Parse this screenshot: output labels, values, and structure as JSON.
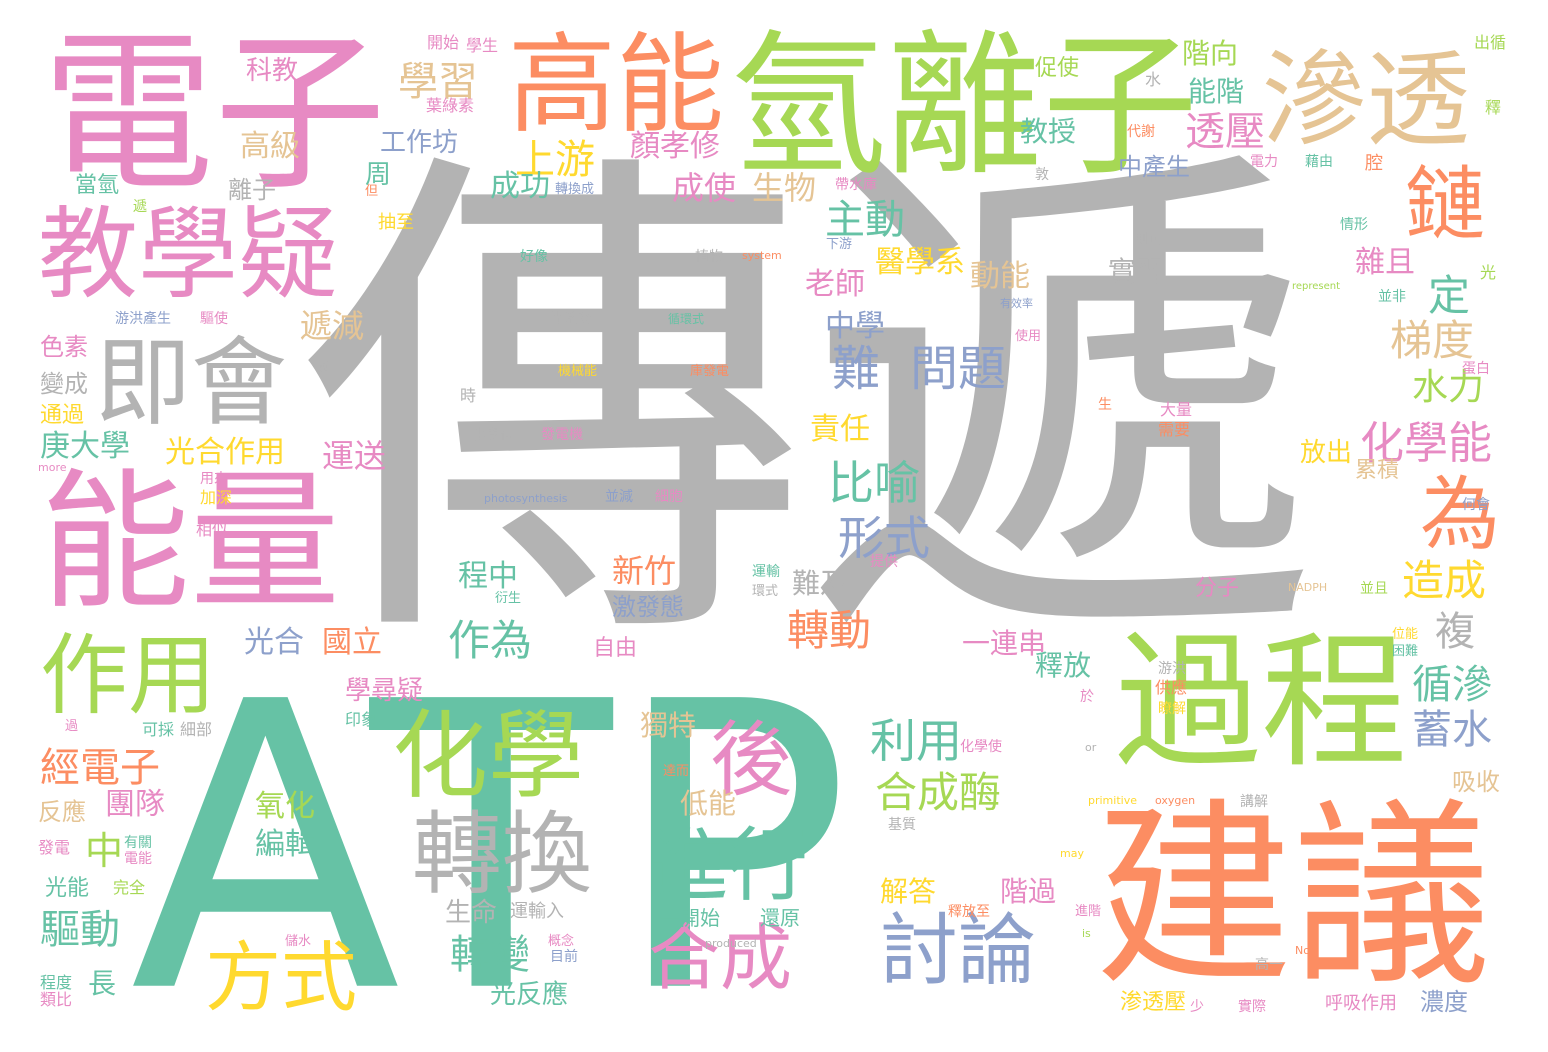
{
  "colors": {
    "green": "#66c2a5",
    "orange": "#fc8d62",
    "blue": "#8da0cb",
    "pink": "#e78ac3",
    "lime": "#a6d854",
    "yellow": "#ffd92f",
    "tan": "#e5c494",
    "gray": "#b3b3b3"
  },
  "words": [
    {
      "text": "ATP",
      "color": "green"
    },
    {
      "text": "傳遞",
      "color": "gray"
    },
    {
      "text": "電子",
      "color": "pink"
    },
    {
      "text": "氫離子",
      "color": "lime"
    },
    {
      "text": "能量",
      "color": "pink"
    },
    {
      "text": "建議",
      "color": "orange"
    },
    {
      "text": "過程",
      "color": "lime"
    },
    {
      "text": "高能",
      "color": "orange"
    },
    {
      "text": "滲透",
      "color": "tan"
    },
    {
      "text": "教學疑",
      "color": "pink"
    },
    {
      "text": "即會",
      "color": "gray"
    },
    {
      "text": "作用",
      "color": "lime"
    },
    {
      "text": "化學",
      "color": "lime"
    },
    {
      "text": "轉換",
      "color": "gray"
    },
    {
      "text": "鏈",
      "color": "orange"
    },
    {
      "text": "為",
      "color": "orange"
    },
    {
      "text": "後",
      "color": "pink"
    },
    {
      "text": "進行",
      "color": "green"
    },
    {
      "text": "討論",
      "color": "blue"
    },
    {
      "text": "方式",
      "color": "yellow"
    },
    {
      "text": "合成",
      "color": "pink"
    },
    {
      "text": "學習",
      "color": "tan"
    },
    {
      "text": "上游",
      "color": "yellow"
    },
    {
      "text": "透壓",
      "color": "pink"
    },
    {
      "text": "問題",
      "color": "blue"
    },
    {
      "text": "難",
      "color": "blue"
    },
    {
      "text": "主動",
      "color": "green"
    },
    {
      "text": "比喻",
      "color": "green"
    },
    {
      "text": "形式",
      "color": "blue"
    },
    {
      "text": "利用",
      "color": "green"
    },
    {
      "text": "合成酶",
      "color": "lime"
    },
    {
      "text": "化學能",
      "color": "pink"
    },
    {
      "text": "梯度",
      "color": "tan"
    },
    {
      "text": "水力",
      "color": "lime"
    },
    {
      "text": "定",
      "color": "green"
    },
    {
      "text": "造成",
      "color": "yellow"
    },
    {
      "text": "複",
      "color": "gray"
    },
    {
      "text": "循滲",
      "color": "green"
    },
    {
      "text": "蓄水",
      "color": "blue"
    },
    {
      "text": "經電子",
      "color": "orange"
    },
    {
      "text": "作為",
      "color": "green"
    },
    {
      "text": "轉動",
      "color": "orange"
    },
    {
      "text": "轉變",
      "color": "green"
    },
    {
      "text": "驅動",
      "color": "green"
    },
    {
      "text": "團隊",
      "color": "pink"
    },
    {
      "text": "中",
      "color": "lime"
    },
    {
      "text": "編輯",
      "color": "green"
    },
    {
      "text": "氧化",
      "color": "lime"
    },
    {
      "text": "光合作用",
      "color": "yellow"
    },
    {
      "text": "庚大學",
      "color": "green"
    },
    {
      "text": "運送",
      "color": "pink"
    },
    {
      "text": "遞減",
      "color": "tan"
    },
    {
      "text": "高級",
      "color": "tan"
    },
    {
      "text": "工作坊",
      "color": "blue"
    },
    {
      "text": "顏孝修",
      "color": "pink"
    },
    {
      "text": "成功",
      "color": "green"
    },
    {
      "text": "成使",
      "color": "pink"
    },
    {
      "text": "生物",
      "color": "tan"
    },
    {
      "text": "醫學系",
      "color": "yellow"
    },
    {
      "text": "動能",
      "color": "tan"
    },
    {
      "text": "老師",
      "color": "pink"
    },
    {
      "text": "中學",
      "color": "blue"
    },
    {
      "text": "責任",
      "color": "yellow"
    },
    {
      "text": "實習",
      "color": "gray"
    },
    {
      "text": "雜且",
      "color": "pink"
    },
    {
      "text": "教授",
      "color": "green"
    },
    {
      "text": "能階",
      "color": "green"
    },
    {
      "text": "階向",
      "color": "lime"
    },
    {
      "text": "中產生",
      "color": "blue"
    },
    {
      "text": "科教",
      "color": "pink"
    },
    {
      "text": "新竹",
      "color": "orange"
    },
    {
      "text": "激發態",
      "color": "blue"
    },
    {
      "text": "程中",
      "color": "green"
    },
    {
      "text": "難及",
      "color": "gray"
    },
    {
      "text": "國立",
      "color": "orange"
    },
    {
      "text": "光合",
      "color": "blue"
    },
    {
      "text": "學尋疑",
      "color": "pink"
    },
    {
      "text": "一連串",
      "color": "pink"
    },
    {
      "text": "釋放",
      "color": "green"
    },
    {
      "text": "獨特",
      "color": "tan"
    },
    {
      "text": "低能",
      "color": "tan"
    },
    {
      "text": "長",
      "color": "green"
    },
    {
      "text": "光反應",
      "color": "green"
    },
    {
      "text": "生命",
      "color": "gray"
    },
    {
      "text": "解答",
      "color": "yellow"
    },
    {
      "text": "階過",
      "color": "pink"
    },
    {
      "text": "一開始",
      "color": "green"
    },
    {
      "text": "還原",
      "color": "green"
    },
    {
      "text": "放出",
      "color": "yellow"
    },
    {
      "text": "累積",
      "color": "tan"
    },
    {
      "text": "吸收",
      "color": "tan"
    },
    {
      "text": "濃度",
      "color": "blue"
    },
    {
      "text": "渗透壓",
      "color": "yellow"
    },
    {
      "text": "呼吸作用",
      "color": "pink"
    },
    {
      "text": "分子",
      "color": "pink"
    },
    {
      "text": "色素",
      "color": "pink"
    },
    {
      "text": "變成",
      "color": "gray"
    },
    {
      "text": "通過",
      "color": "yellow"
    },
    {
      "text": "反應",
      "color": "tan"
    },
    {
      "text": "發電",
      "color": "pink"
    },
    {
      "text": "光能",
      "color": "green"
    },
    {
      "text": "程度",
      "color": "green"
    },
    {
      "text": "類比",
      "color": "pink"
    },
    {
      "text": "離子",
      "color": "gray"
    },
    {
      "text": "當氫",
      "color": "green"
    },
    {
      "text": "周",
      "color": "green"
    },
    {
      "text": "抽至",
      "color": "yellow"
    },
    {
      "text": "開始",
      "color": "pink"
    },
    {
      "text": "學生",
      "color": "pink"
    },
    {
      "text": "葉綠素",
      "color": "pink"
    },
    {
      "text": "促使",
      "color": "lime"
    },
    {
      "text": "水",
      "color": "gray"
    },
    {
      "text": "出循",
      "color": "lime"
    },
    {
      "text": "代謝",
      "color": "orange"
    },
    {
      "text": "釋",
      "color": "lime"
    },
    {
      "text": "自由",
      "color": "pink"
    },
    {
      "text": "目前",
      "color": "blue"
    },
    {
      "text": "運輸入",
      "color": "gray"
    },
    {
      "text": "完全",
      "color": "lime"
    },
    {
      "text": "有關",
      "color": "green"
    },
    {
      "text": "電能",
      "color": "pink"
    },
    {
      "text": "可採",
      "color": "green"
    },
    {
      "text": "細部",
      "color": "gray"
    },
    {
      "text": "印象",
      "color": "green"
    },
    {
      "text": "加深",
      "color": "yellow"
    },
    {
      "text": "用來",
      "color": "pink"
    },
    {
      "text": "相似",
      "color": "pink"
    },
    {
      "text": "雖",
      "color": "gray"
    },
    {
      "text": "時",
      "color": "gray"
    },
    {
      "text": "化學位",
      "color": "gray"
    },
    {
      "text": "發電機",
      "color": "pink"
    },
    {
      "text": "光系統",
      "color": "gray"
    },
    {
      "text": "循環式",
      "color": "green"
    },
    {
      "text": "機械能",
      "color": "yellow"
    },
    {
      "text": "庫發電",
      "color": "orange"
    },
    {
      "text": "並減",
      "color": "blue"
    },
    {
      "text": "細胞",
      "color": "pink"
    },
    {
      "text": "好像",
      "color": "green"
    },
    {
      "text": "植物",
      "color": "gray"
    },
    {
      "text": "system",
      "color": "orange"
    },
    {
      "text": "下游",
      "color": "blue"
    },
    {
      "text": "則可",
      "color": "gray"
    },
    {
      "text": "帶水庫",
      "color": "pink"
    },
    {
      "text": "轉換成",
      "color": "blue"
    },
    {
      "text": "電力",
      "color": "pink"
    },
    {
      "text": "藉由",
      "color": "green"
    },
    {
      "text": "腔",
      "color": "orange"
    },
    {
      "text": "敦",
      "color": "gray"
    },
    {
      "text": "情形",
      "color": "green"
    },
    {
      "text": "光",
      "color": "lime"
    },
    {
      "text": "represent",
      "color": "lime"
    },
    {
      "text": "並非",
      "color": "green"
    },
    {
      "text": "有效率",
      "color": "blue"
    },
    {
      "text": "使用",
      "color": "pink"
    },
    {
      "text": "蛋白",
      "color": "pink"
    },
    {
      "text": "大量",
      "color": "pink"
    },
    {
      "text": "需要",
      "color": "orange"
    },
    {
      "text": "生",
      "color": "orange"
    },
    {
      "text": "何會",
      "color": "blue"
    },
    {
      "text": "NADPH",
      "color": "tan"
    },
    {
      "text": "並且",
      "color": "lime"
    },
    {
      "text": "位能",
      "color": "yellow"
    },
    {
      "text": "困難",
      "color": "green"
    },
    {
      "text": "供應",
      "color": "orange"
    },
    {
      "text": "瞭解",
      "color": "yellow"
    },
    {
      "text": "游洪",
      "color": "gray"
    },
    {
      "text": "於",
      "color": "pink"
    },
    {
      "text": "or",
      "color": "gray"
    },
    {
      "text": "primitive",
      "color": "yellow"
    },
    {
      "text": "oxygen",
      "color": "orange"
    },
    {
      "text": "講解",
      "color": "gray"
    },
    {
      "text": "基質",
      "color": "gray"
    },
    {
      "text": "化學使",
      "color": "pink"
    },
    {
      "text": "釋放至",
      "color": "orange"
    },
    {
      "text": "may",
      "color": "yellow"
    },
    {
      "text": "進階",
      "color": "pink"
    },
    {
      "text": "is",
      "color": "lime"
    },
    {
      "text": "No",
      "color": "orange"
    },
    {
      "text": "高一",
      "color": "gray"
    },
    {
      "text": "實際",
      "color": "pink"
    },
    {
      "text": "少",
      "color": "pink"
    },
    {
      "text": "produced",
      "color": "gray"
    },
    {
      "text": "儲水",
      "color": "pink"
    },
    {
      "text": "概念",
      "color": "pink"
    },
    {
      "text": "photosynthesis",
      "color": "blue"
    },
    {
      "text": "more",
      "color": "pink"
    },
    {
      "text": "游洪產生",
      "color": "blue"
    },
    {
      "text": "驅使",
      "color": "pink"
    },
    {
      "text": "遞",
      "color": "lime"
    },
    {
      "text": "提供",
      "color": "pink"
    },
    {
      "text": "運輸",
      "color": "green"
    },
    {
      "text": "環式",
      "color": "gray"
    },
    {
      "text": "衍生",
      "color": "green"
    },
    {
      "text": "達而",
      "color": "orange"
    },
    {
      "text": "過",
      "color": "pink"
    },
    {
      "text": "但",
      "color": "orange"
    }
  ]
}
